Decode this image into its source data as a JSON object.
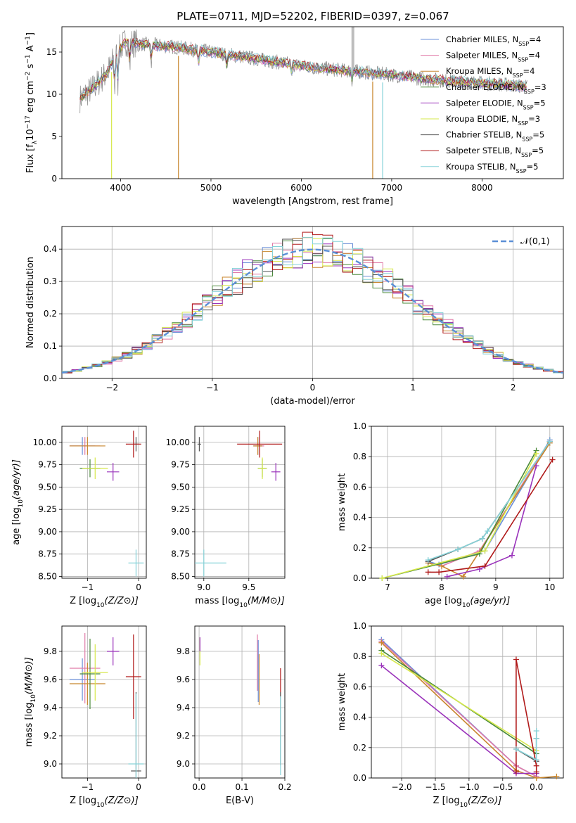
{
  "figure": {
    "title": "PLATE=0711, MJD=52202, FIBERID=0397, z=0.067"
  },
  "series_styles": [
    {
      "name": "Chabrier MILES",
      "nssp": "4",
      "color": "#6a8fd8"
    },
    {
      "name": "Salpeter MILES",
      "nssp": "4",
      "color": "#e07aa8"
    },
    {
      "name": "Kroupa MILES",
      "nssp": "4",
      "color": "#c8862e"
    },
    {
      "name": "Chabrier ELODIE",
      "nssp": "3",
      "color": "#4a8a3a"
    },
    {
      "name": "Salpeter ELODIE",
      "nssp": "5",
      "color": "#9a33bb"
    },
    {
      "name": "Kroupa ELODIE",
      "nssp": "3",
      "color": "#d6e84a"
    },
    {
      "name": "Chabrier STELIB",
      "nssp": "5",
      "color": "#555555"
    },
    {
      "name": "Salpeter STELIB",
      "nssp": "5",
      "color": "#b01a1a"
    },
    {
      "name": "Kroupa STELIB",
      "nssp": "5",
      "color": "#86d2d8"
    }
  ],
  "chart_data": [
    {
      "id": "spectrum",
      "type": "line",
      "title": "PLATE=0711, MJD=52202, FIBERID=0397, z=0.067",
      "xlabel": "wavelength [Angstrom, rest frame]",
      "ylabel": "Flux [f_λ 10^-17 erg cm^-2 s^-1 A^-1]",
      "xlim": [
        3350,
        8900
      ],
      "ylim": [
        0,
        18
      ],
      "xticks": [
        4000,
        5000,
        6000,
        7000,
        8000
      ],
      "yticks": [
        0,
        5,
        10,
        15
      ],
      "grid": false,
      "legend": "top-right",
      "data_color": "#888888",
      "continuum": {
        "x": [
          3550,
          3700,
          3850,
          3950,
          4050,
          4200,
          4400,
          4600,
          4800,
          5000,
          5200,
          5500,
          5800,
          6100,
          6400,
          6700,
          7000,
          7300,
          7600,
          7900,
          8200,
          8500
        ],
        "y": [
          9.5,
          10.8,
          12.5,
          14.8,
          16.2,
          16.0,
          15.8,
          15.6,
          15.3,
          15.0,
          14.7,
          14.2,
          13.7,
          13.2,
          12.9,
          12.6,
          12.3,
          11.9,
          11.6,
          11.4,
          11.2,
          10.9
        ]
      },
      "model_dips": [
        {
          "x": 3900,
          "y": 0,
          "series": "Kroupa ELODIE"
        },
        {
          "x": 4640,
          "y": 0,
          "series": "Kroupa MILES"
        },
        {
          "x": 6790,
          "y": 0,
          "series": "Kroupa MILES"
        },
        {
          "x": 6900,
          "y": 0,
          "series": "Kroupa STELIB"
        }
      ]
    },
    {
      "id": "residuals",
      "type": "histogram",
      "xlabel": "(data-model)/error",
      "ylabel": "Normed distribution",
      "xlim": [
        -2.5,
        2.5
      ],
      "ylim": [
        0,
        0.47
      ],
      "xticks": [
        -2,
        -1,
        0,
        1,
        2
      ],
      "yticks": [
        0.0,
        0.1,
        0.2,
        0.3,
        0.4
      ],
      "grid": true,
      "legend": "top-right",
      "reference_curve": {
        "label": "𝒩(0,1)",
        "mean": 0,
        "sigma": 1,
        "color": "#5b8fd6"
      },
      "bin_width": 0.1
    },
    {
      "id": "age_vs_Z",
      "type": "errorbar",
      "xlabel": "Z [log10(Z/Z⊙)]",
      "ylabel": "age [log10(age/yr)]",
      "xlim": [
        -1.5,
        0.15
      ],
      "ylim": [
        8.48,
        10.18
      ],
      "xticks": [
        -1,
        0
      ],
      "yticks": [
        8.5,
        8.75,
        9.0,
        9.25,
        9.5,
        9.75,
        10.0
      ],
      "grid": true,
      "points": [
        {
          "series": "Chabrier MILES",
          "x": -1.1,
          "xerr": 0.25,
          "y": 9.96,
          "yerr": 0.1
        },
        {
          "series": "Salpeter MILES",
          "x": -1.05,
          "xerr": 0.3,
          "y": 9.96,
          "yerr": 0.1
        },
        {
          "series": "Kroupa MILES",
          "x": -1.0,
          "xerr": 0.35,
          "y": 9.96,
          "yerr": 0.1
        },
        {
          "series": "Chabrier ELODIE",
          "x": -0.95,
          "xerr": 0.2,
          "y": 9.71,
          "yerr": 0.1
        },
        {
          "series": "Salpeter ELODIE",
          "x": -0.5,
          "xerr": 0.12,
          "y": 9.67,
          "yerr": 0.1
        },
        {
          "series": "Kroupa ELODIE",
          "x": -0.85,
          "xerr": 0.25,
          "y": 9.71,
          "yerr": 0.12
        },
        {
          "series": "Chabrier STELIB",
          "x": -0.05,
          "xerr": 0.05,
          "y": 9.98,
          "yerr": 0.08
        },
        {
          "series": "Salpeter STELIB",
          "x": -0.1,
          "xerr": 0.15,
          "y": 9.98,
          "yerr": 0.15
        },
        {
          "series": "Kroupa STELIB",
          "x": -0.05,
          "xerr": 0.15,
          "y": 8.65,
          "yerr": 0.15
        }
      ]
    },
    {
      "id": "age_vs_mass",
      "type": "errorbar",
      "xlabel": "mass [log10(M/M⊙)]",
      "ylabel": "",
      "xlim": [
        8.9,
        9.9
      ],
      "ylim": [
        8.48,
        10.18
      ],
      "xticks": [
        9.0,
        9.5
      ],
      "yticks": [
        8.5,
        8.75,
        9.0,
        9.25,
        9.5,
        9.75,
        10.0
      ],
      "grid": true,
      "points": [
        {
          "series": "Chabrier MILES",
          "x": 9.6,
          "xerr": 0.05,
          "y": 9.96,
          "yerr": 0.1
        },
        {
          "series": "Salpeter MILES",
          "x": 9.62,
          "xerr": 0.05,
          "y": 9.96,
          "yerr": 0.1
        },
        {
          "series": "Kroupa MILES",
          "x": 9.6,
          "xerr": 0.05,
          "y": 9.96,
          "yerr": 0.1
        },
        {
          "series": "Chabrier ELODIE",
          "x": 9.65,
          "xerr": 0.05,
          "y": 9.71,
          "yerr": 0.1
        },
        {
          "series": "Salpeter ELODIE",
          "x": 9.8,
          "xerr": 0.05,
          "y": 9.67,
          "yerr": 0.1
        },
        {
          "series": "Kroupa ELODIE",
          "x": 9.65,
          "xerr": 0.05,
          "y": 9.71,
          "yerr": 0.12
        },
        {
          "series": "Chabrier STELIB",
          "x": 8.95,
          "xerr": 0.02,
          "y": 9.98,
          "yerr": 0.08
        },
        {
          "series": "Salpeter STELIB",
          "x": 9.62,
          "xerr": 0.25,
          "y": 9.98,
          "yerr": 0.15
        },
        {
          "series": "Kroupa STELIB",
          "x": 9.0,
          "xerr": 0.25,
          "y": 8.65,
          "yerr": 0.15
        }
      ]
    },
    {
      "id": "weight_vs_age",
      "type": "line",
      "xlabel": "age [log10(age/yr)]",
      "ylabel": "mass weight",
      "xlim": [
        6.7,
        10.25
      ],
      "ylim": [
        0,
        1
      ],
      "xticks": [
        7,
        8,
        9,
        10
      ],
      "yticks": [
        0.0,
        0.2,
        0.4,
        0.6,
        0.8,
        1.0
      ],
      "grid": true,
      "series": [
        {
          "name": "Chabrier MILES",
          "x": [
            7.75,
            7.95,
            8.8,
            10.0
          ],
          "y": [
            0.11,
            0.09,
            0.18,
            0.91
          ]
        },
        {
          "name": "Salpeter MILES",
          "x": [
            7.75,
            8.0,
            8.7,
            10.0
          ],
          "y": [
            0.1,
            0.08,
            0.18,
            0.9
          ]
        },
        {
          "name": "Kroupa MILES",
          "x": [
            7.75,
            8.0,
            8.4,
            10.0
          ],
          "y": [
            0.1,
            0.08,
            0.01,
            0.89
          ]
        },
        {
          "name": "Chabrier ELODIE",
          "x": [
            6.9,
            8.7,
            9.75
          ],
          "y": [
            0.0,
            0.16,
            0.84
          ]
        },
        {
          "name": "Salpeter ELODIE",
          "x": [
            8.1,
            8.7,
            9.3,
            9.75
          ],
          "y": [
            0.01,
            0.06,
            0.15,
            0.74
          ]
        },
        {
          "name": "Kroupa ELODIE",
          "x": [
            6.9,
            8.8,
            9.75
          ],
          "y": [
            0.0,
            0.18,
            0.82
          ]
        },
        {
          "name": "Chabrier STELIB",
          "x": [
            7.75,
            8.3,
            8.75,
            10.0
          ],
          "y": [
            0.11,
            0.19,
            0.26,
            0.9
          ]
        },
        {
          "name": "Salpeter STELIB",
          "x": [
            7.75,
            7.95,
            8.8,
            10.05
          ],
          "y": [
            0.04,
            0.04,
            0.08,
            0.78
          ]
        },
        {
          "name": "Kroupa STELIB",
          "x": [
            7.75,
            8.3,
            8.75,
            8.85,
            10.0
          ],
          "y": [
            0.12,
            0.19,
            0.26,
            0.31,
            0.9
          ]
        }
      ]
    },
    {
      "id": "mass_vs_Z",
      "type": "errorbar",
      "xlabel": "Z [log10(Z/Z⊙)]",
      "ylabel": "mass [log10(M/M⊙)]",
      "xlim": [
        -1.5,
        0.15
      ],
      "ylim": [
        8.9,
        9.98
      ],
      "xticks": [
        -1,
        0
      ],
      "yticks": [
        9.0,
        9.2,
        9.4,
        9.6,
        9.8
      ],
      "grid": true,
      "points": [
        {
          "series": "Chabrier MILES",
          "x": -1.1,
          "xerr": 0.25,
          "y": 9.6,
          "yerr": 0.15
        },
        {
          "series": "Salpeter MILES",
          "x": -1.05,
          "xerr": 0.3,
          "y": 9.68,
          "yerr": 0.25
        },
        {
          "series": "Kroupa MILES",
          "x": -1.0,
          "xerr": 0.35,
          "y": 9.57,
          "yerr": 0.15
        },
        {
          "series": "Chabrier ELODIE",
          "x": -0.95,
          "xerr": 0.2,
          "y": 9.64,
          "yerr": 0.25
        },
        {
          "series": "Salpeter ELODIE",
          "x": -0.5,
          "xerr": 0.12,
          "y": 9.8,
          "yerr": 0.1
        },
        {
          "series": "Kroupa ELODIE",
          "x": -0.85,
          "xerr": 0.25,
          "y": 9.65,
          "yerr": 0.2
        },
        {
          "series": "Chabrier STELIB",
          "x": -0.05,
          "xerr": 0.1,
          "y": 8.95,
          "yerr": 0.56
        },
        {
          "series": "Salpeter STELIB",
          "x": -0.1,
          "xerr": 0.15,
          "y": 9.62,
          "yerr": 0.3
        },
        {
          "series": "Kroupa STELIB",
          "x": -0.05,
          "xerr": 0.15,
          "y": 9.0,
          "yerr": 0.5
        }
      ]
    },
    {
      "id": "mass_vs_ebv",
      "type": "errorbar",
      "xlabel": "E(B-V)",
      "ylabel": "",
      "xlim": [
        -0.01,
        0.2
      ],
      "ylim": [
        8.9,
        9.98
      ],
      "xticks": [
        0.0,
        0.1,
        0.2
      ],
      "yticks": [
        9.0,
        9.2,
        9.4,
        9.6,
        9.8
      ],
      "grid": true,
      "points": [
        {
          "series": "Kroupa ELODIE",
          "x": 0.002,
          "y": 9.8,
          "yerr": 0.1
        },
        {
          "series": "Salpeter ELODIE",
          "x": 0.002,
          "y": 9.85,
          "yerr": 0.05
        },
        {
          "series": "Salpeter MILES",
          "x": 0.136,
          "y": 9.72,
          "yerr": 0.2
        },
        {
          "series": "Kroupa MILES",
          "x": 0.14,
          "y": 9.6,
          "yerr": 0.18
        },
        {
          "series": "Chabrier MILES",
          "x": 0.138,
          "y": 9.66,
          "yerr": 0.22
        },
        {
          "series": "Salpeter STELIB",
          "x": 0.19,
          "y": 9.58,
          "yerr": 0.1
        },
        {
          "series": "Chabrier STELIB",
          "x": 0.19,
          "y": 9.25,
          "yerr": 0.26
        },
        {
          "series": "Kroupa STELIB",
          "x": 0.19,
          "y": 9.2,
          "yerr": 0.28
        }
      ]
    },
    {
      "id": "weight_vs_Z",
      "type": "line",
      "xlabel": "Z [log10(Z/Z⊙)]",
      "ylabel": "mass weight",
      "xlim": [
        -2.45,
        0.4
      ],
      "ylim": [
        0,
        1
      ],
      "xticks": [
        -2.0,
        -1.5,
        -1.0,
        -0.5,
        0.0
      ],
      "yticks": [
        0.0,
        0.2,
        0.4,
        0.6,
        0.8,
        1.0
      ],
      "grid": true,
      "series": [
        {
          "name": "Chabrier MILES",
          "x": [
            -2.3,
            -0.3,
            0.0
          ],
          "y": [
            0.91,
            0.08,
            0.01
          ]
        },
        {
          "name": "Salpeter MILES",
          "x": [
            -2.3,
            -0.3,
            0.0
          ],
          "y": [
            0.9,
            0.08,
            0.01
          ]
        },
        {
          "name": "Kroupa MILES",
          "x": [
            -2.3,
            -0.3,
            0.0,
            0.3
          ],
          "y": [
            0.89,
            0.05,
            0.0,
            0.01
          ]
        },
        {
          "name": "Chabrier ELODIE",
          "x": [
            -2.3,
            0.0
          ],
          "y": [
            0.84,
            0.16
          ]
        },
        {
          "name": "Salpeter ELODIE",
          "x": [
            -2.3,
            -0.3,
            0.0
          ],
          "y": [
            0.74,
            0.03,
            0.03
          ]
        },
        {
          "name": "Kroupa ELODIE",
          "x": [
            -2.3,
            0.0
          ],
          "y": [
            0.82,
            0.18
          ]
        },
        {
          "name": "Chabrier STELIB",
          "x": [
            -0.3,
            0.0,
            0.0
          ],
          "y": [
            0.19,
            0.11,
            0.26
          ]
        },
        {
          "name": "Salpeter STELIB",
          "x": [
            -0.3,
            -0.3,
            0.0,
            0.0
          ],
          "y": [
            0.04,
            0.78,
            0.08,
            0.04
          ]
        },
        {
          "name": "Kroupa STELIB",
          "x": [
            -0.3,
            0.0,
            0.0,
            0.0
          ],
          "y": [
            0.19,
            0.12,
            0.26,
            0.31
          ]
        }
      ]
    }
  ]
}
